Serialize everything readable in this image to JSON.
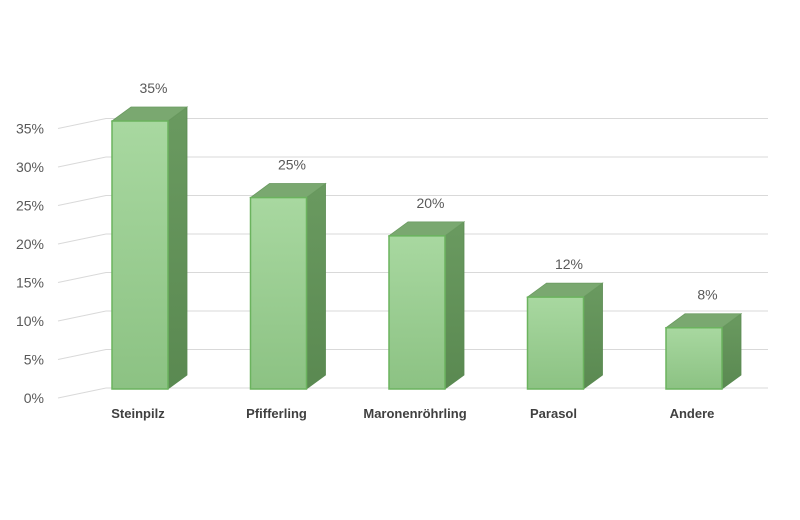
{
  "chart_data": {
    "type": "bar",
    "categories": [
      "Steinpilz",
      "Pfifferling",
      "Maronenröhrling",
      "Parasol",
      "Andere"
    ],
    "values": [
      35,
      25,
      20,
      12,
      8
    ],
    "data_labels": [
      "35%",
      "25%",
      "20%",
      "12%",
      "8%"
    ],
    "y_ticks": [
      "0%",
      "5%",
      "10%",
      "15%",
      "20%",
      "25%",
      "30%",
      "35%"
    ],
    "ylim": [
      0,
      35
    ],
    "grid": true,
    "legend": "none",
    "style": "3d-column",
    "colors": {
      "bar_front_top": "#a8d8a0",
      "bar_front_bottom": "#8cc283",
      "bar_side": "#5f8f56",
      "bar_top": "#7aa870",
      "bar_edge": "#6bb35e",
      "grid": "#d9d9d9",
      "text": "#595959"
    }
  }
}
